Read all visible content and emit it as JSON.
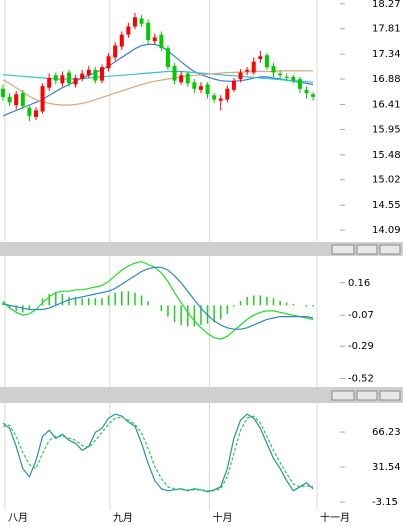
{
  "chart_data": [
    {
      "type": "candlestick",
      "up_color": "#ff0000",
      "down_color": "#00cc00",
      "ylim": [
        13.87,
        18.34
      ],
      "yticks": [
        18.27,
        17.81,
        17.34,
        16.88,
        16.41,
        15.95,
        15.48,
        15.02,
        14.55,
        14.09
      ],
      "open": [
        16.7,
        16.55,
        16.4,
        16.62,
        16.35,
        16.18,
        16.28,
        16.72,
        16.95,
        16.8,
        17.0,
        16.78,
        16.88,
        16.95,
        17.05,
        16.85,
        17.08,
        17.28,
        17.48,
        17.7,
        17.85,
        18.0,
        17.92,
        17.58,
        17.7,
        17.45,
        17.12,
        16.82,
        16.98,
        16.82,
        16.68,
        16.78,
        16.58,
        16.48,
        16.5,
        16.68,
        16.88,
        17.02,
        17.0,
        17.25,
        17.32,
        17.12,
        16.98,
        16.92,
        16.92,
        16.88,
        16.68,
        16.6
      ],
      "high": [
        16.78,
        16.62,
        16.66,
        16.68,
        16.4,
        16.36,
        16.8,
        16.98,
        17.0,
        17.02,
        17.05,
        16.96,
        17.05,
        17.12,
        17.1,
        17.15,
        17.36,
        17.56,
        17.76,
        17.92,
        18.1,
        18.06,
        17.98,
        17.72,
        17.76,
        17.5,
        17.18,
        17.02,
        17.02,
        16.88,
        16.82,
        16.82,
        16.62,
        16.58,
        16.76,
        16.9,
        17.06,
        17.1,
        17.28,
        17.4,
        17.36,
        17.18,
        17.04,
        16.98,
        16.96,
        16.92,
        16.74,
        16.64
      ],
      "low": [
        16.48,
        16.38,
        16.32,
        16.32,
        16.1,
        16.12,
        16.24,
        16.66,
        16.78,
        16.74,
        16.74,
        16.72,
        16.84,
        16.9,
        16.8,
        16.8,
        17.02,
        17.22,
        17.42,
        17.64,
        17.8,
        17.84,
        17.52,
        17.52,
        17.4,
        17.05,
        16.78,
        16.78,
        16.74,
        16.62,
        16.62,
        16.52,
        16.44,
        16.3,
        16.45,
        16.64,
        16.82,
        16.95,
        16.96,
        17.18,
        17.05,
        16.92,
        16.88,
        16.84,
        16.8,
        16.62,
        16.52,
        16.48
      ],
      "close": [
        16.55,
        16.45,
        16.6,
        16.38,
        16.2,
        16.3,
        16.75,
        16.9,
        16.85,
        16.95,
        16.8,
        16.9,
        16.98,
        17.05,
        16.85,
        17.1,
        17.3,
        17.5,
        17.7,
        17.85,
        18.02,
        17.9,
        17.6,
        17.65,
        17.45,
        17.1,
        16.85,
        16.95,
        16.8,
        16.7,
        16.75,
        16.6,
        16.5,
        16.52,
        16.7,
        16.85,
        17.0,
        17.05,
        17.2,
        17.3,
        17.1,
        17.0,
        16.95,
        16.9,
        16.85,
        16.7,
        16.62,
        16.55
      ],
      "series": [
        {
          "color": "#3a7fd5",
          "values": [
            16.2,
            16.25,
            16.3,
            16.35,
            16.4,
            16.45,
            16.5,
            16.58,
            16.65,
            16.72,
            16.78,
            16.84,
            16.9,
            16.95,
            17.0,
            17.05,
            17.12,
            17.2,
            17.28,
            17.36,
            17.44,
            17.5,
            17.52,
            17.52,
            17.48,
            17.4,
            17.3,
            17.2,
            17.1,
            17.02,
            16.96,
            16.92,
            16.88,
            16.85,
            16.84,
            16.84,
            16.85,
            16.87,
            16.9,
            16.92,
            16.92,
            16.9,
            16.88,
            16.86,
            16.84,
            16.82,
            16.8,
            16.78
          ]
        },
        {
          "color": "#33c0d0",
          "values": [
            16.96,
            16.95,
            16.94,
            16.93,
            16.92,
            16.91,
            16.9,
            16.89,
            16.88,
            16.88,
            16.88,
            16.88,
            16.89,
            16.9,
            16.91,
            16.92,
            16.93,
            16.94,
            16.95,
            16.96,
            16.97,
            16.98,
            16.99,
            17.0,
            17.01,
            17.02,
            17.02,
            17.02,
            17.01,
            17.0,
            16.99,
            16.98,
            16.97,
            16.96,
            16.95,
            16.94,
            16.93,
            16.92,
            16.91,
            16.9,
            16.89,
            16.88,
            16.87,
            16.86,
            16.85,
            16.84,
            16.83,
            16.82
          ]
        },
        {
          "color": "#d9a77a",
          "values": [
            16.86,
            16.8,
            16.72,
            16.64,
            16.56,
            16.5,
            16.46,
            16.43,
            16.41,
            16.4,
            16.4,
            16.41,
            16.43,
            16.46,
            16.5,
            16.54,
            16.58,
            16.62,
            16.66,
            16.7,
            16.74,
            16.78,
            16.81,
            16.84,
            16.86,
            16.88,
            16.9,
            16.92,
            16.94,
            16.95,
            16.96,
            16.97,
            16.98,
            16.99,
            17.0,
            17.0,
            17.01,
            17.01,
            17.02,
            17.02,
            17.02,
            17.02,
            17.03,
            17.03,
            17.03,
            17.03,
            17.03,
            17.03
          ]
        }
      ]
    },
    {
      "type": "macd",
      "ylim": [
        -0.58,
        0.35
      ],
      "yticks": [
        0.16,
        -0.07,
        -0.29,
        -0.52
      ],
      "bar_color": "#22cc22",
      "bars": [
        0.02,
        -0.02,
        -0.04,
        -0.05,
        -0.03,
        0.0,
        0.05,
        0.08,
        0.09,
        0.08,
        0.06,
        0.06,
        0.05,
        0.05,
        0.05,
        0.05,
        0.07,
        0.09,
        0.1,
        0.1,
        0.09,
        0.07,
        0.03,
        0.0,
        -0.04,
        -0.08,
        -0.12,
        -0.14,
        -0.15,
        -0.15,
        -0.14,
        -0.13,
        -0.12,
        -0.1,
        -0.06,
        -0.01,
        0.03,
        0.06,
        0.07,
        0.07,
        0.06,
        0.05,
        0.03,
        0.02,
        0.01,
        0.0,
        -0.01,
        -0.01
      ],
      "series": [
        {
          "color": "#22dd22",
          "values": [
            0.03,
            -0.02,
            -0.05,
            -0.07,
            -0.06,
            -0.03,
            0.02,
            0.06,
            0.09,
            0.1,
            0.1,
            0.11,
            0.11,
            0.12,
            0.13,
            0.14,
            0.17,
            0.21,
            0.25,
            0.28,
            0.3,
            0.31,
            0.29,
            0.27,
            0.23,
            0.17,
            0.09,
            0.02,
            -0.05,
            -0.11,
            -0.16,
            -0.2,
            -0.23,
            -0.24,
            -0.22,
            -0.18,
            -0.14,
            -0.1,
            -0.07,
            -0.05,
            -0.04,
            -0.04,
            -0.05,
            -0.06,
            -0.07,
            -0.08,
            -0.09,
            -0.1
          ]
        },
        {
          "color": "#2a86c8",
          "values": [
            0.01,
            0.0,
            -0.01,
            -0.02,
            -0.03,
            -0.03,
            -0.03,
            -0.02,
            0.0,
            0.02,
            0.04,
            0.05,
            0.06,
            0.07,
            0.08,
            0.09,
            0.1,
            0.12,
            0.15,
            0.18,
            0.21,
            0.24,
            0.26,
            0.27,
            0.27,
            0.25,
            0.21,
            0.16,
            0.1,
            0.04,
            -0.02,
            -0.07,
            -0.11,
            -0.14,
            -0.16,
            -0.17,
            -0.17,
            -0.16,
            -0.14,
            -0.12,
            -0.1,
            -0.09,
            -0.08,
            -0.08,
            -0.08,
            -0.08,
            -0.08,
            -0.09
          ]
        }
      ]
    },
    {
      "type": "line",
      "ylim": [
        -11,
        95
      ],
      "yticks": [
        66.23,
        31.54,
        -3.15
      ],
      "xlim": [
        0,
        48.5
      ],
      "xticks": [
        {
          "value": 0.3,
          "label": "八月"
        },
        {
          "value": 16.2,
          "label": "九月"
        },
        {
          "value": 31.3,
          "label": "十月"
        },
        {
          "value": 47.6,
          "label": "十一月"
        }
      ],
      "series": [
        {
          "color": "#2a8fa0",
          "values": [
            75,
            70,
            52,
            30,
            22,
            38,
            62,
            68,
            60,
            64,
            58,
            55,
            48,
            52,
            66,
            70,
            80,
            84,
            82,
            76,
            72,
            55,
            35,
            18,
            10,
            8,
            9,
            10,
            8,
            10,
            9,
            7,
            9,
            12,
            30,
            60,
            78,
            84,
            80,
            70,
            55,
            40,
            30,
            18,
            8,
            12,
            16,
            10
          ]
        },
        {
          "color": "#22cc44",
          "dashed": true,
          "values": [
            72,
            73,
            62,
            46,
            34,
            30,
            45,
            58,
            62,
            62,
            60,
            58,
            53,
            51,
            58,
            66,
            74,
            80,
            81,
            78,
            74,
            65,
            50,
            32,
            20,
            12,
            10,
            9,
            9,
            9,
            9,
            8,
            8,
            10,
            22,
            45,
            68,
            80,
            82,
            75,
            62,
            48,
            36,
            25,
            15,
            12,
            13,
            12
          ]
        }
      ]
    }
  ]
}
